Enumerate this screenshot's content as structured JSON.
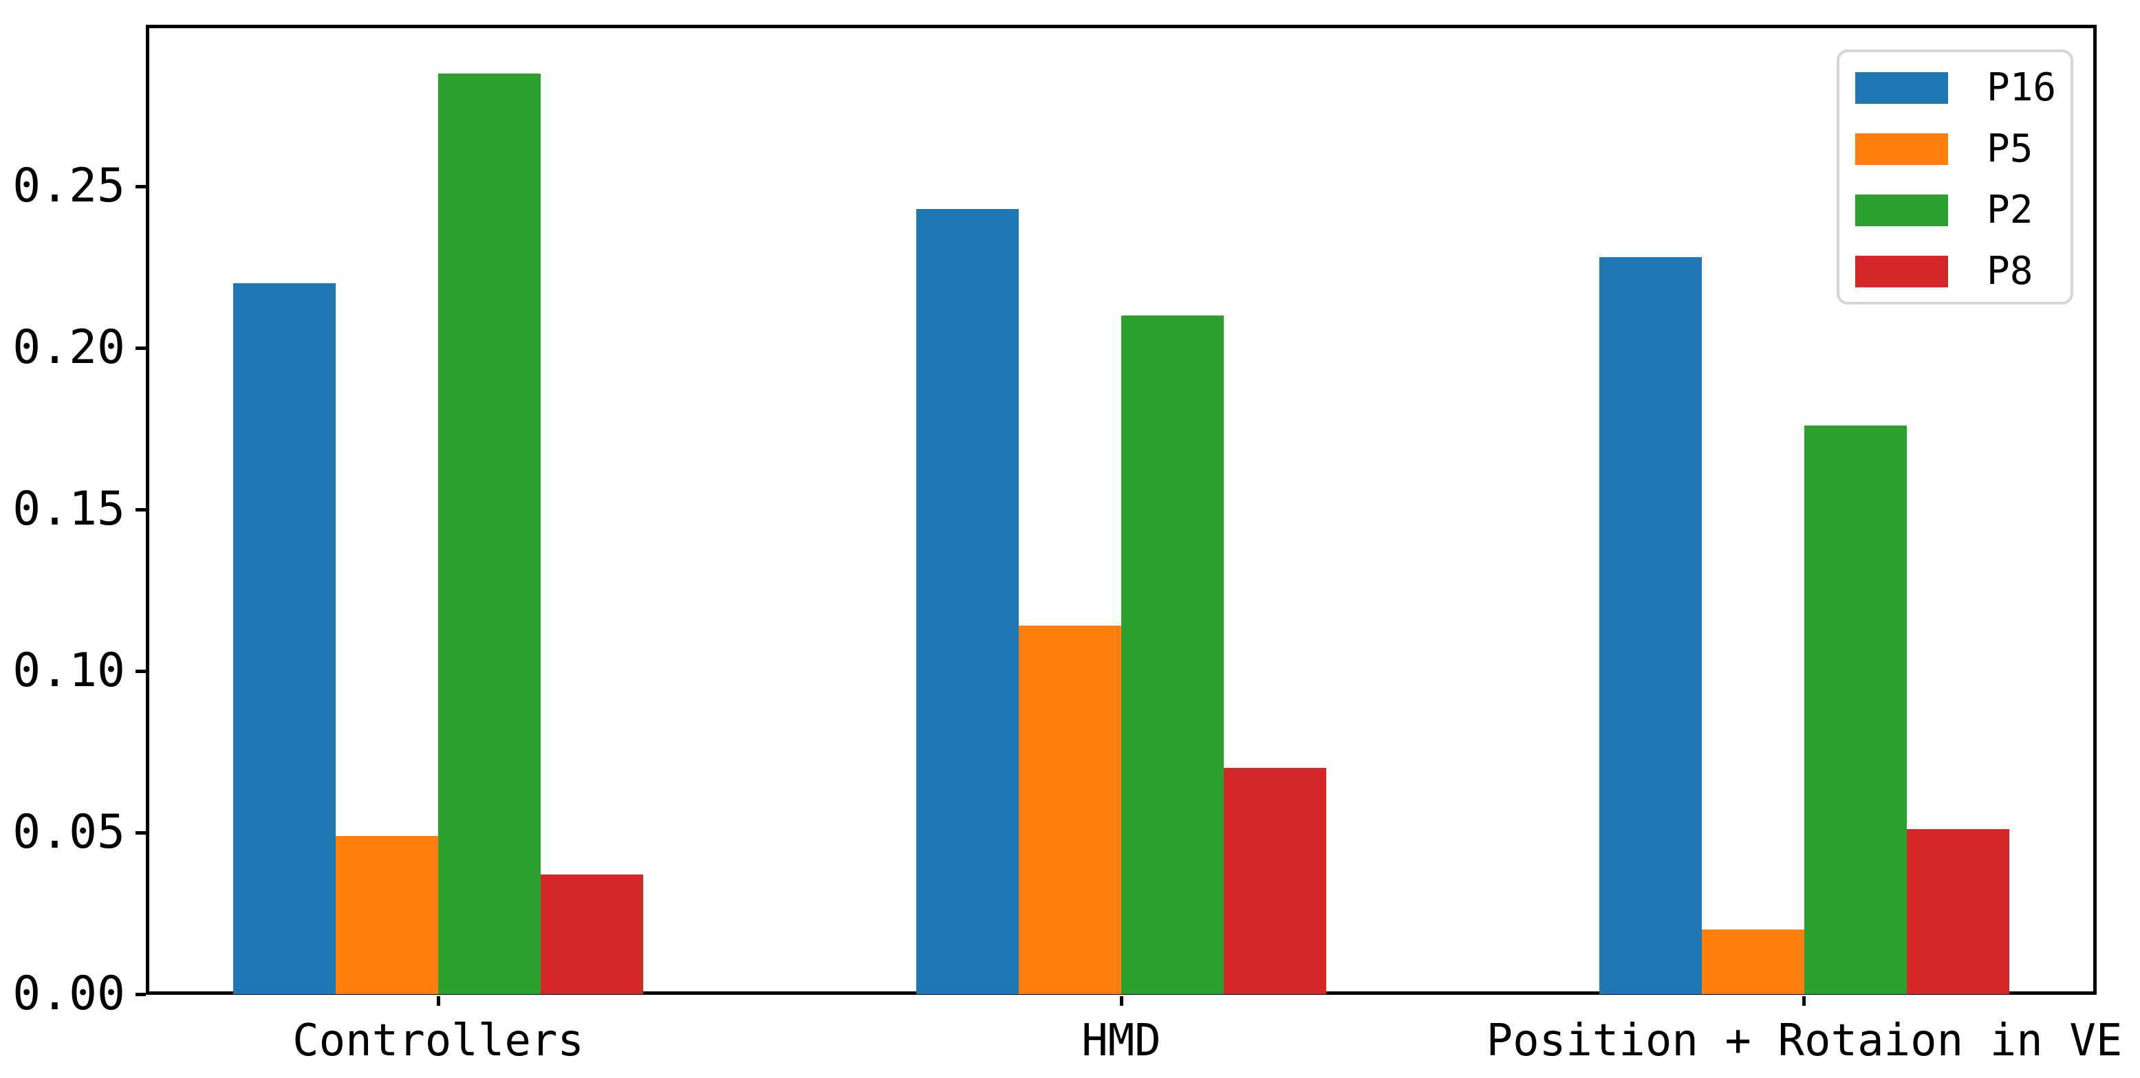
{
  "chart_data": {
    "type": "bar",
    "title": "",
    "categories": [
      "Controllers",
      "HMD",
      "Position + Rotaion in VE"
    ],
    "series": [
      {
        "name": "P16",
        "color": "#1f77b4",
        "values": [
          0.22,
          0.243,
          0.228
        ]
      },
      {
        "name": "P5",
        "color": "#ff7f0e",
        "values": [
          0.049,
          0.114,
          0.02
        ]
      },
      {
        "name": "P2",
        "color": "#2ca02c",
        "values": [
          0.285,
          0.21,
          0.176
        ]
      },
      {
        "name": "P8",
        "color": "#d62728",
        "values": [
          0.037,
          0.07,
          0.051
        ]
      }
    ],
    "xlabel": "",
    "ylabel": "",
    "yticks": [
      0,
      0.05,
      0.1,
      0.15,
      0.2,
      0.25
    ],
    "ytick_labels": [
      "0.00",
      "0.05",
      "0.10",
      "0.15",
      "0.20",
      "0.25"
    ],
    "ylim": [
      0,
      0.3
    ],
    "grid": false,
    "legend_position": "upper right",
    "legend_labels": [
      "P16",
      "P5",
      "P2",
      "P8"
    ],
    "axis_color": "#000000",
    "background_color": "#ffffff",
    "legend_border_color": "#d5d5d5"
  }
}
